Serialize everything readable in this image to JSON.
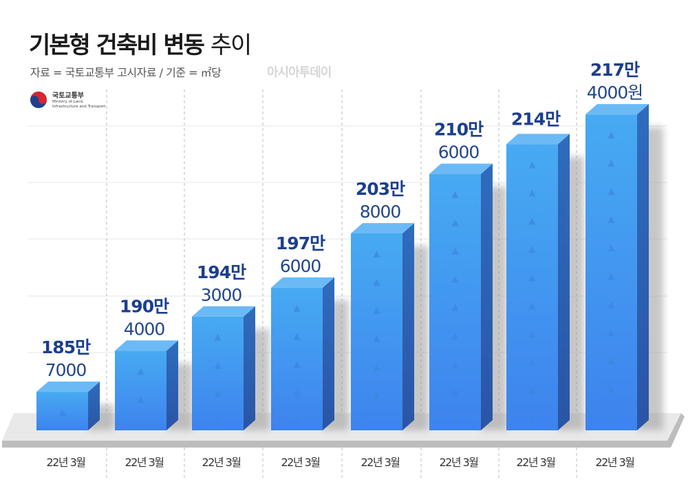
{
  "header": {
    "title_bold": "기본형 건축비 변동",
    "title_light": "추이",
    "subtitle": "자료 = 국토교통부 고시자료 / 기준 = ㎡당",
    "watermark": "아시아투데이"
  },
  "logo": {
    "name_ko": "국토교통부",
    "name_en_1": "Ministry of Land,",
    "name_en_2": "Infrastructure and Transport"
  },
  "colors": {
    "bar_front_top": "#47aaf2",
    "bar_front_bottom": "#3d83ee",
    "bar_side": "#2c62b2",
    "bar_top": "#6bbaf6",
    "label_bold": "#1b3f8e",
    "label_light": "#23468c"
  },
  "chart_data": {
    "type": "bar",
    "style": "3d",
    "title": "기본형 건축비 변동 추이",
    "unit": "원/㎡",
    "categories": [
      "22년 3월",
      "22년 3월",
      "22년 3월",
      "22년 3월",
      "22년 3월",
      "22년 3월",
      "22년 3월",
      "22년 3월"
    ],
    "values": [
      1857000,
      1904000,
      1943000,
      1976000,
      2038000,
      2106000,
      2140000,
      2174000
    ],
    "labels": [
      {
        "main": "185만",
        "sub": "7000"
      },
      {
        "main": "190만",
        "sub": "4000"
      },
      {
        "main": "194만",
        "sub": "3000"
      },
      {
        "main": "197만",
        "sub": "6000"
      },
      {
        "main": "203만",
        "sub": "8000"
      },
      {
        "main": "210만",
        "sub": "6000"
      },
      {
        "main": "214만",
        "sub": ""
      },
      {
        "main": "217만",
        "sub": "4000원"
      }
    ],
    "grid": true,
    "legend": "none"
  }
}
